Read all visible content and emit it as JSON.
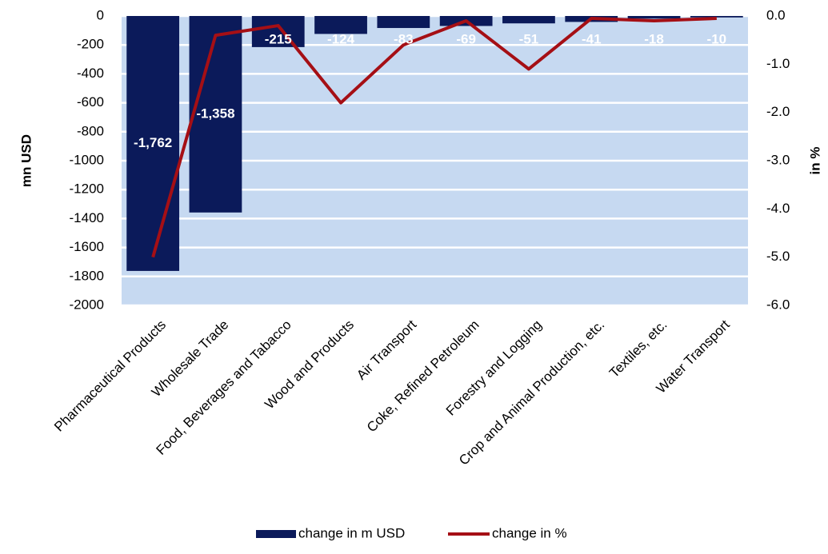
{
  "chart_data": {
    "type": "bar",
    "categories": [
      "Pharmaceutical Products",
      "Wholesale Trade",
      "Food, Beverages and Tabacco",
      "Wood and Products",
      "Air Transport",
      "Coke, Refined Petroleum",
      "Forestry and Logging",
      "Crop and Animal Production, etc.",
      "Textiles, etc.",
      "Water Transport"
    ],
    "series": [
      {
        "name": "change in m USD",
        "type": "bar",
        "color": "#0b1a5a",
        "values": [
          -1762,
          -1358,
          -215,
          -124,
          -83,
          -69,
          -51,
          -41,
          -18,
          -10
        ],
        "value_labels": [
          "-1,762",
          "-1,358",
          "-215",
          "-124",
          "-83",
          "-69",
          "-51",
          "-41",
          "-18",
          "-10"
        ]
      },
      {
        "name": "change in %",
        "type": "line",
        "axis": "y2",
        "color": "#a50f15",
        "values": [
          -5.0,
          -0.4,
          -0.2,
          -1.8,
          -0.6,
          -0.1,
          -1.1,
          -0.05,
          -0.1,
          -0.05
        ]
      }
    ],
    "ylabel": "mn USD",
    "y2label": "in %",
    "ylim": [
      -2000,
      0
    ],
    "yticks": [
      0,
      -200,
      -400,
      -600,
      -800,
      -1000,
      -1200,
      -1400,
      -1600,
      -1800,
      -2000
    ],
    "y2lim": [
      -6,
      0
    ],
    "y2ticks": [
      {
        "value": 0,
        "label": "0.0"
      },
      {
        "value": -1,
        "label": "-1.0"
      },
      {
        "value": -2,
        "label": "-2.0"
      },
      {
        "value": -3,
        "label": "-3.0"
      },
      {
        "value": -4,
        "label": "-4.0"
      },
      {
        "value": -5,
        "label": "-5.0"
      },
      {
        "value": -6,
        "label": "-6.0"
      }
    ],
    "grid": true,
    "legend": "bottom"
  }
}
